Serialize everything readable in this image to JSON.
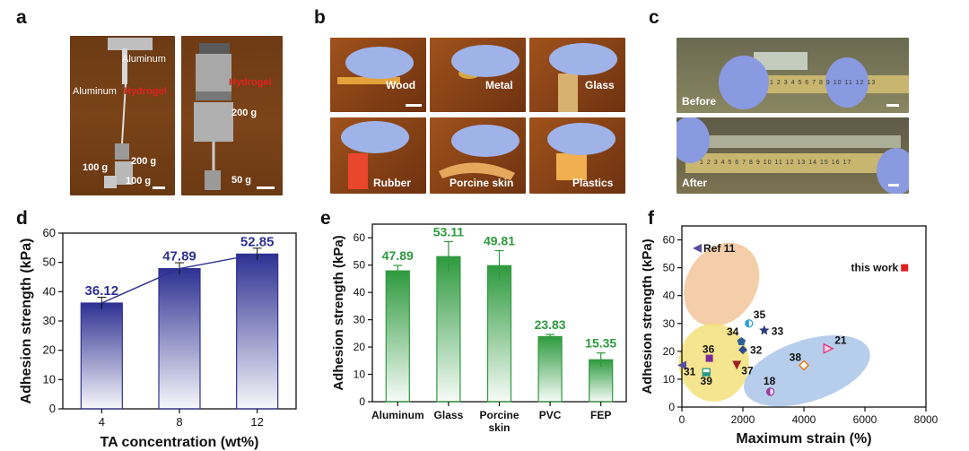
{
  "panel_labels": [
    "a",
    "b",
    "c",
    "d",
    "e",
    "f"
  ],
  "panel_a": {
    "left_photo": {
      "aluminum_top": "Aluminum",
      "aluminum_left": "Aluminum",
      "hydrogel": "Hydrogel",
      "w100a": "100 g",
      "w200": "200 g",
      "w100b": "100 g"
    },
    "right_photo": {
      "hydrogel": "Hydrogel",
      "w200": "200 g",
      "w50": "50 g"
    }
  },
  "panel_b": {
    "substrates": [
      "Wood",
      "Metal",
      "Glass",
      "Rubber",
      "Porcine skin",
      "Plastics"
    ]
  },
  "panel_c": {
    "before": "Before",
    "after": "After",
    "ruler_numbers_before": [
      "1",
      "2",
      "3",
      "4",
      "5",
      "6",
      "7",
      "8",
      "9",
      "10",
      "11",
      "12",
      "13"
    ],
    "ruler_numbers_after": [
      "1",
      "2",
      "3",
      "4",
      "5",
      "6",
      "7",
      "8",
      "9",
      "10",
      "11",
      "12",
      "13",
      "14",
      "15",
      "16",
      "17"
    ]
  },
  "chart_data": [
    {
      "panel": "d",
      "type": "bar",
      "categories": [
        "4",
        "8",
        "12"
      ],
      "values": [
        36.12,
        47.89,
        52.85
      ],
      "errors": [
        2.0,
        2.0,
        2.0
      ],
      "value_labels": [
        "36.12",
        "47.89",
        "52.85"
      ],
      "xlabel": "TA concentration (wt%)",
      "ylabel": "Adhesion strength (kPa)",
      "ylim": [
        0,
        60
      ],
      "yticks": [
        "0",
        "10",
        "20",
        "30",
        "40",
        "50",
        "60"
      ],
      "bar_color": "#2e3192",
      "label_color": "#2e3192",
      "connect_line": true
    },
    {
      "panel": "e",
      "type": "bar",
      "categories": [
        "Aluminum",
        "Glass",
        "Porcine skin",
        "PVC",
        "FEP"
      ],
      "category_lines": [
        [
          "Aluminum"
        ],
        [
          "Glass"
        ],
        [
          "Porcine",
          "skin"
        ],
        [
          "PVC"
        ],
        [
          "FEP"
        ]
      ],
      "values": [
        47.89,
        53.11,
        49.81,
        23.83,
        15.35
      ],
      "errors": [
        2.0,
        5.5,
        5.5,
        0.8,
        2.5
      ],
      "value_labels": [
        "47.89",
        "53.11",
        "49.81",
        "23.83",
        "15.35"
      ],
      "xlabel": "",
      "ylabel": "Adhesion strength (kPa)",
      "ylim": [
        0,
        65
      ],
      "yticks": [
        "0",
        "10",
        "20",
        "30",
        "40",
        "50",
        "60"
      ],
      "bar_color": "#2e9a3e",
      "label_color": "#2e9a3e"
    },
    {
      "panel": "f",
      "type": "scatter",
      "xlabel": "Maximum strain (%)",
      "ylabel": "Adhesion strength (kPa)",
      "xlim": [
        0,
        8000
      ],
      "ylim": [
        0,
        65
      ],
      "xticks": [
        "0",
        "2000",
        "4000",
        "6000",
        "8000"
      ],
      "yticks": [
        "0",
        "10",
        "20",
        "30",
        "40",
        "50",
        "60"
      ],
      "points": [
        {
          "label": "Ref 11",
          "x": 500,
          "y": 57,
          "marker": "triangle-left",
          "color": "#5a4fa0"
        },
        {
          "label": "35",
          "x": 2200,
          "y": 30,
          "marker": "circle-half",
          "color": "#2a9fd6"
        },
        {
          "label": "34",
          "x": 1950,
          "y": 23.5,
          "marker": "pentagon",
          "color": "#2d5f9a"
        },
        {
          "label": "33",
          "x": 2700,
          "y": 27.5,
          "marker": "star",
          "color": "#2a3a7a"
        },
        {
          "label": "32",
          "x": 2000,
          "y": 20.5,
          "marker": "diamond",
          "color": "#2d4f8a"
        },
        {
          "label": "36",
          "x": 900,
          "y": 17.5,
          "marker": "square",
          "color": "#7b2a9a"
        },
        {
          "label": "37",
          "x": 1800,
          "y": 15,
          "marker": "triangle-down",
          "color": "#a0202a"
        },
        {
          "label": "38",
          "x": 4000,
          "y": 15,
          "marker": "diamond-open",
          "color": "#e87a1e"
        },
        {
          "label": "21",
          "x": 4800,
          "y": 21,
          "marker": "triangle-right-open",
          "color": "#e0307a"
        },
        {
          "label": "31",
          "x": 0,
          "y": 15,
          "marker": "triangle-left",
          "color": "#5a4fa0"
        },
        {
          "label": "39",
          "x": 800,
          "y": 12.5,
          "marker": "square-half",
          "color": "#2a9a8a"
        },
        {
          "label": "18",
          "x": 2900,
          "y": 5.5,
          "marker": "circle-half",
          "color": "#9a3aa0"
        },
        {
          "label": "this work",
          "x": 7300,
          "y": 50,
          "marker": "square",
          "color": "#e02020"
        }
      ],
      "clusters": [
        {
          "name": "orange-region",
          "color": "#f2c59a"
        },
        {
          "name": "yellow-region",
          "color": "#f3e07a"
        },
        {
          "name": "blue-region",
          "color": "#a9c6e8"
        }
      ]
    }
  ]
}
